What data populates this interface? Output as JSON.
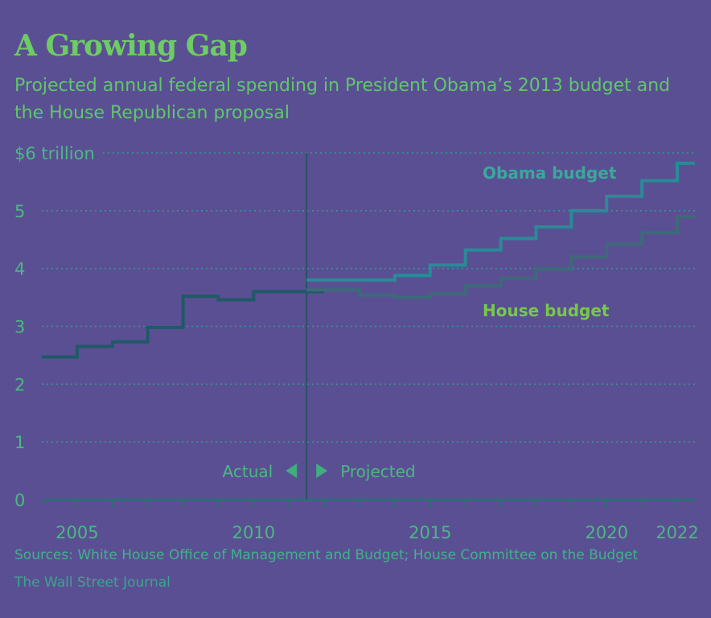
{
  "header": {
    "title": "A Growing Gap",
    "subtitle": "Projected annual federal spending in President Obama’s 2013 budget and the House Republican proposal"
  },
  "footer": {
    "source": "Sources: White House Office of Management and Budget; House Committee on the Budget",
    "credit": "The Wall Street Journal"
  },
  "colors": {
    "background": "#5b4f94",
    "actual_line": "#1f5a66",
    "obama_line": "#2a8a96",
    "house_line": "#3d6a78",
    "grid": "#2f9c8c",
    "axis": "#2d6f73",
    "labels": "#49b980"
  },
  "chart_data": {
    "type": "line",
    "title": "A Growing Gap",
    "subtitle": "Projected annual federal spending in President Obama’s 2013 budget and the House Republican proposal",
    "step": true,
    "xlim": [
      2004,
      2022.5
    ],
    "ylim": [
      0,
      6
    ],
    "x_ticks": [
      2005,
      2010,
      2015,
      2020,
      2022
    ],
    "y_ticks": [
      0,
      1,
      2,
      3,
      4,
      5,
      6
    ],
    "y_tick_labels": [
      "0",
      "1",
      "2",
      "3",
      "4",
      "5",
      "$6 trillion"
    ],
    "divider_x": 2011.5,
    "divider_labels": {
      "left": "Actual",
      "right": "Projected"
    },
    "grid": true,
    "series": [
      {
        "name": "",
        "role": "actual",
        "x": [
          2004,
          2005,
          2006,
          2007,
          2008,
          2009,
          2010,
          2011
        ],
        "y": [
          2.47,
          2.65,
          2.73,
          2.98,
          3.52,
          3.46,
          3.6,
          3.6
        ]
      },
      {
        "name": "Obama budget",
        "role": "projected",
        "x": [
          2012,
          2013,
          2014,
          2015,
          2016,
          2017,
          2018,
          2019,
          2020,
          2021,
          2022
        ],
        "y": [
          3.8,
          3.8,
          3.88,
          4.06,
          4.32,
          4.52,
          4.72,
          5.0,
          5.25,
          5.52,
          5.82
        ]
      },
      {
        "name": "House budget",
        "role": "projected",
        "x": [
          2012,
          2013,
          2014,
          2015,
          2016,
          2017,
          2018,
          2019,
          2020,
          2021,
          2022
        ],
        "y": [
          3.63,
          3.54,
          3.5,
          3.56,
          3.7,
          3.83,
          3.99,
          4.2,
          4.42,
          4.62,
          4.9
        ]
      }
    ]
  }
}
